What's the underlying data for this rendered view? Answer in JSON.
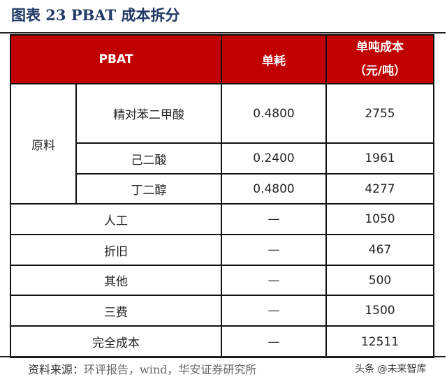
{
  "title": "图表 23 PBAT 成本拆分",
  "table": {
    "headers": {
      "item": "PBAT",
      "consumption": "单耗",
      "cost_line1": "单吨成本",
      "cost_line2": "（元/吨）"
    },
    "raw_group": "原料",
    "raw_rows": [
      {
        "name": "精对苯二甲酸",
        "consumption": "0.4800",
        "cost": "2755"
      },
      {
        "name": "己二酸",
        "consumption": "0.2400",
        "cost": "1961"
      },
      {
        "name": "丁二醇",
        "consumption": "0.4800",
        "cost": "4277"
      }
    ],
    "other_rows": [
      {
        "name": "人工",
        "consumption": "—",
        "cost": "1050"
      },
      {
        "name": "折旧",
        "consumption": "—",
        "cost": "467"
      },
      {
        "name": "其他",
        "consumption": "—",
        "cost": "500"
      },
      {
        "name": "三费",
        "consumption": "—",
        "cost": "1500"
      },
      {
        "name": "完全成本",
        "consumption": "—",
        "cost": "12511"
      }
    ]
  },
  "source": {
    "label": "资料来源：",
    "text": "环评报告，wind，华安证券研究所"
  },
  "watermark": "头条 @未来智库",
  "colors": {
    "header_bg": "#c00000",
    "title": "#1f3864"
  }
}
